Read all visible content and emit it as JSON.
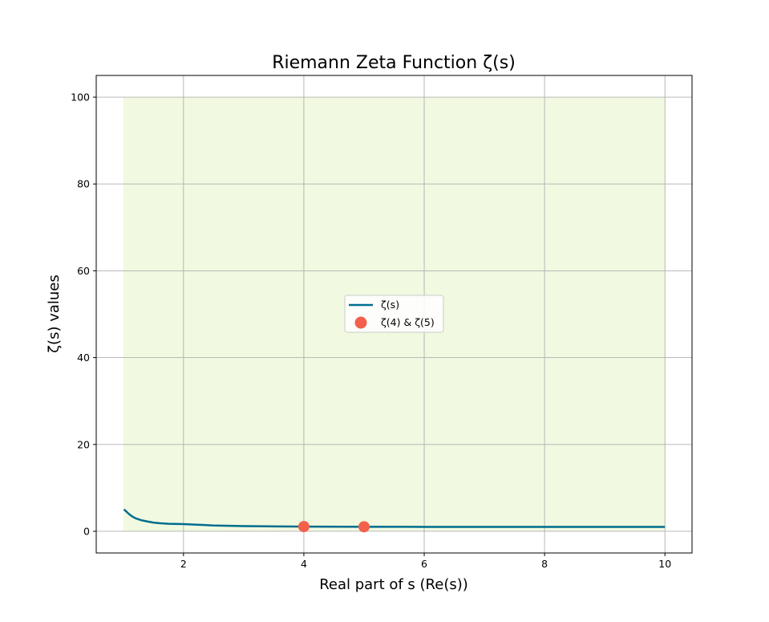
{
  "chart_data": {
    "type": "line",
    "title": "Riemann Zeta Function ζ(s)",
    "xlabel": "Real part of s (Re(s))",
    "ylabel": "ζ(s) values",
    "xlim": [
      0.55,
      10.45
    ],
    "ylim": [
      -5,
      105
    ],
    "xticks": [
      2,
      4,
      6,
      8,
      10
    ],
    "yticks": [
      0,
      20,
      40,
      60,
      80,
      100
    ],
    "grid": true,
    "legend_position": "center",
    "shaded_region": {
      "x": [
        1,
        10
      ],
      "y": [
        0,
        100
      ],
      "color": "#f1f9e0"
    },
    "series": [
      {
        "name": "ζ(s)",
        "kind": "line",
        "color": "#006d8f",
        "points": [
          [
            1.01,
            5.05
          ],
          [
            1.05,
            4.55
          ],
          [
            1.1,
            3.9
          ],
          [
            1.15,
            3.4
          ],
          [
            1.2,
            3.0
          ],
          [
            1.3,
            2.55
          ],
          [
            1.4,
            2.25
          ],
          [
            1.5,
            2.0
          ],
          [
            1.6,
            1.87
          ],
          [
            1.75,
            1.73
          ],
          [
            2.0,
            1.645
          ],
          [
            2.25,
            1.5
          ],
          [
            2.5,
            1.34
          ],
          [
            3.0,
            1.202
          ],
          [
            3.5,
            1.127
          ],
          [
            4.0,
            1.082
          ],
          [
            5.0,
            1.037
          ],
          [
            6.0,
            1.017
          ],
          [
            7.0,
            1.008
          ],
          [
            8.0,
            1.004
          ],
          [
            9.0,
            1.002
          ],
          [
            10.0,
            1.001
          ]
        ]
      },
      {
        "name": "ζ(4) & ζ(5)",
        "kind": "scatter",
        "color": "#f4604a",
        "points": [
          [
            4,
            1.082
          ],
          [
            5,
            1.037
          ]
        ]
      }
    ]
  }
}
